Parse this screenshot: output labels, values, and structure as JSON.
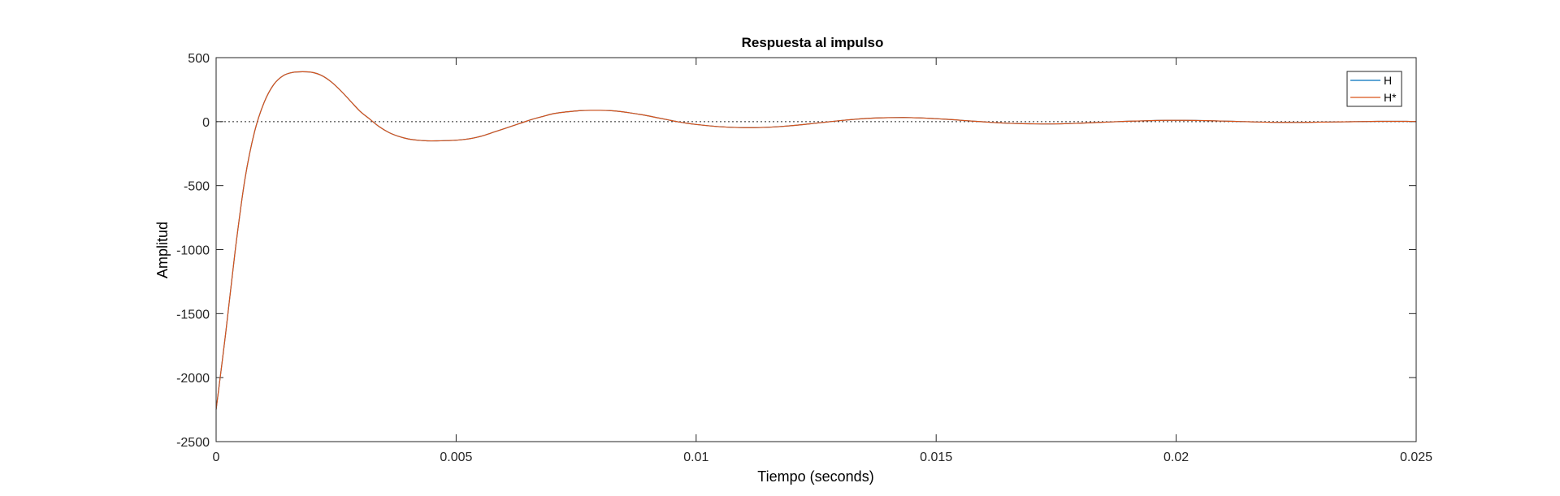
{
  "chart_data": {
    "type": "line",
    "title": "Respuesta al impulso",
    "xlabel": "Tiempo (seconds)",
    "ylabel": "Amplitud",
    "xlim": [
      0,
      0.025
    ],
    "ylim": [
      -2500,
      500
    ],
    "xticks": [
      0,
      0.005,
      0.01,
      0.015,
      0.02,
      0.025
    ],
    "xtick_labels": [
      "0",
      "0.005",
      "0.01",
      "0.015",
      "0.02",
      "0.025"
    ],
    "yticks": [
      -2500,
      -2000,
      -1500,
      -1000,
      -500,
      0,
      500
    ],
    "ytick_labels": [
      "-2500",
      "-2000",
      "-1500",
      "-1000",
      "-500",
      "0",
      "500"
    ],
    "grid": false,
    "zero_reference_line": true,
    "legend_position": "top-right",
    "x": [
      0,
      0.0002,
      0.0004,
      0.0006,
      0.0008,
      0.001,
      0.0012,
      0.0014,
      0.0016,
      0.0018,
      0.002,
      0.0022,
      0.0024,
      0.0026,
      0.0028,
      0.003,
      0.0032,
      0.0034,
      0.0036,
      0.0038,
      0.004,
      0.0042,
      0.0044,
      0.0046,
      0.0048,
      0.005,
      0.0052,
      0.0054,
      0.0056,
      0.0058,
      0.006,
      0.0062,
      0.0064,
      0.0066,
      0.0068,
      0.007,
      0.0072,
      0.0074,
      0.0076,
      0.0078,
      0.008,
      0.0082,
      0.0084,
      0.0086,
      0.0088,
      0.009,
      0.0092,
      0.0094,
      0.0096,
      0.0098,
      0.01,
      0.0102,
      0.0104,
      0.0106,
      0.0108,
      0.011,
      0.0112,
      0.0114,
      0.0116,
      0.0118,
      0.012,
      0.0122,
      0.0124,
      0.0126,
      0.0128,
      0.013,
      0.0132,
      0.0134,
      0.0136,
      0.0138,
      0.014,
      0.0142,
      0.0144,
      0.0146,
      0.0148,
      0.015,
      0.0152,
      0.0154,
      0.0156,
      0.0158,
      0.016,
      0.0162,
      0.0164,
      0.0166,
      0.0168,
      0.017,
      0.0172,
      0.0174,
      0.0176,
      0.0178,
      0.018,
      0.0182,
      0.0184,
      0.0186,
      0.0188,
      0.019,
      0.0192,
      0.0194,
      0.0196,
      0.0198,
      0.02,
      0.0202,
      0.0204,
      0.0206,
      0.0208,
      0.021,
      0.0212,
      0.0214,
      0.0216,
      0.0218,
      0.022,
      0.0222,
      0.0224,
      0.0226,
      0.0228,
      0.023,
      0.0232,
      0.0234,
      0.0236,
      0.0238,
      0.024,
      0.0242,
      0.0244,
      0.0246,
      0.0248,
      0.025
    ],
    "series": [
      {
        "name": "H",
        "color": "#0072BD",
        "values": [
          -2250,
          -1650,
          -1000,
          -450,
          -80,
          150,
          290,
          360,
          385,
          390,
          385,
          360,
          310,
          240,
          160,
          80,
          20,
          -40,
          -85,
          -115,
          -135,
          -145,
          -150,
          -150,
          -148,
          -145,
          -138,
          -125,
          -105,
          -80,
          -55,
          -30,
          -5,
          20,
          40,
          60,
          72,
          80,
          86,
          88,
          88,
          86,
          80,
          70,
          58,
          45,
          30,
          15,
          0,
          -12,
          -22,
          -30,
          -37,
          -42,
          -45,
          -47,
          -47,
          -45,
          -42,
          -37,
          -31,
          -24,
          -16,
          -8,
          0,
          8,
          15,
          21,
          26,
          29,
          31,
          32,
          32,
          30,
          27,
          23,
          19,
          14,
          8,
          3,
          -2,
          -7,
          -11,
          -14,
          -16,
          -17,
          -18,
          -18,
          -17,
          -15,
          -12,
          -9,
          -6,
          -3,
          0,
          3,
          5,
          7,
          9,
          10,
          10,
          10,
          9,
          8,
          6,
          4,
          2,
          0,
          -2,
          -4,
          -5,
          -6,
          -6,
          -6,
          -5,
          -4,
          -3,
          -2,
          -1,
          0,
          1,
          2,
          2,
          2,
          2,
          1
        ]
      },
      {
        "name": "H*",
        "color": "#D95319",
        "values": [
          -2250,
          -1650,
          -1000,
          -450,
          -80,
          150,
          290,
          360,
          385,
          390,
          385,
          360,
          310,
          240,
          160,
          80,
          20,
          -40,
          -85,
          -115,
          -135,
          -145,
          -150,
          -150,
          -148,
          -145,
          -138,
          -125,
          -105,
          -80,
          -55,
          -30,
          -5,
          20,
          40,
          60,
          72,
          80,
          86,
          88,
          88,
          86,
          80,
          70,
          58,
          45,
          30,
          15,
          0,
          -12,
          -22,
          -30,
          -37,
          -42,
          -45,
          -47,
          -47,
          -45,
          -42,
          -37,
          -31,
          -24,
          -16,
          -8,
          0,
          8,
          15,
          21,
          26,
          29,
          31,
          32,
          32,
          30,
          27,
          23,
          19,
          14,
          8,
          3,
          -2,
          -7,
          -11,
          -14,
          -16,
          -17,
          -18,
          -18,
          -17,
          -15,
          -12,
          -9,
          -6,
          -3,
          0,
          3,
          5,
          7,
          9,
          10,
          10,
          10,
          9,
          8,
          6,
          4,
          2,
          0,
          -2,
          -4,
          -5,
          -6,
          -6,
          -6,
          -5,
          -4,
          -3,
          -2,
          -1,
          0,
          1,
          2,
          2,
          2,
          2,
          1
        ]
      }
    ]
  }
}
